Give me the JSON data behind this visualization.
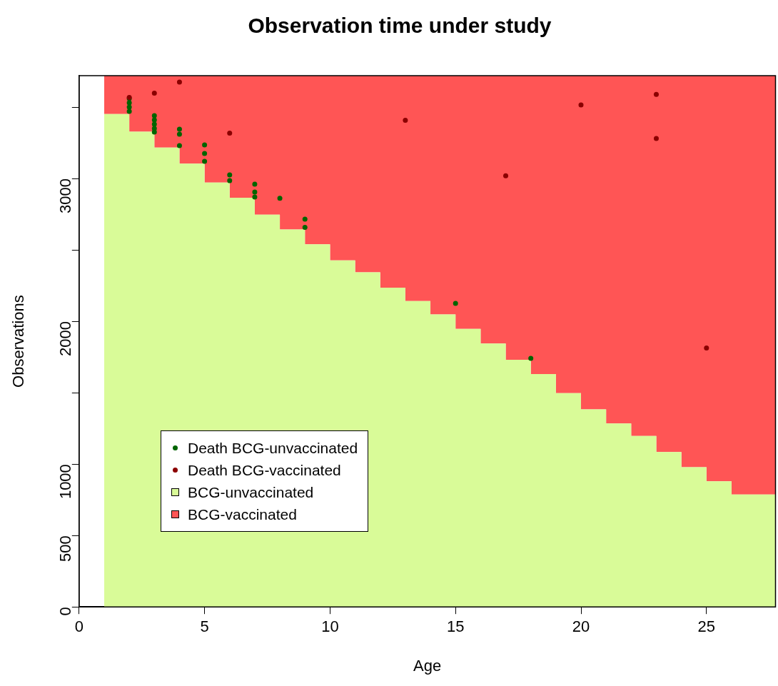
{
  "chart_data": {
    "type": "step",
    "title": "Observation time under study",
    "xlabel": "Age",
    "ylabel": "Observations",
    "xlim": [
      0,
      27.75
    ],
    "xticks": [
      0,
      5,
      10,
      15,
      20,
      25
    ],
    "ylim": [
      0,
      3720
    ],
    "yticks": [
      0,
      500,
      1000,
      {
        "value": 1500,
        "label": null
      },
      2000,
      {
        "value": 2500,
        "label": null
      },
      3000,
      {
        "value": 3500,
        "label": null
      }
    ],
    "grid": false,
    "legend": "bottom left",
    "stacked": true,
    "x": [
      1,
      2,
      3,
      4,
      5,
      6,
      7,
      8,
      9,
      10,
      11,
      12,
      13,
      14,
      15,
      16,
      17,
      18,
      19,
      20,
      21,
      22,
      23,
      24,
      25,
      26,
      27,
      27.75
    ],
    "series": [
      {
        "name": "BCG-unvaccinated",
        "type": "area",
        "color": "#d9fb98",
        "values": [
          3568,
          3451,
          3328,
          3217,
          3104,
          2972,
          2865,
          2747,
          2643,
          2539,
          2427,
          2343,
          2235,
          2142,
          2048,
          1947,
          1844,
          1730,
          1630,
          1497,
          1383,
          1284,
          1197,
          1085,
          978,
          880,
          787,
          787
        ]
      },
      {
        "name": "BCG-vaccinated",
        "type": "area",
        "color": "#ff5555",
        "values": [
          152,
          269,
          392,
          503,
          616,
          748,
          855,
          973,
          1077,
          1181,
          1293,
          1377,
          1485,
          1578,
          1672,
          1773,
          1876,
          1990,
          2090,
          2223,
          2337,
          2436,
          2523,
          2635,
          2742,
          2840,
          2933,
          2933
        ]
      },
      {
        "name": "Death BCG-unvaccinated",
        "type": "scatter",
        "color": "#006400",
        "marker": "circle",
        "x": [
          2,
          2,
          2,
          2,
          3,
          3,
          3,
          3,
          3,
          4,
          4,
          4,
          5,
          5,
          5,
          6,
          6,
          7,
          7,
          7,
          8,
          9,
          9,
          15,
          18
        ],
        "values": [
          3560,
          3530,
          3500,
          3470,
          3440,
          3410,
          3380,
          3350,
          3325,
          3345,
          3310,
          3230,
          3235,
          3175,
          3120,
          3025,
          2985,
          2960,
          2905,
          2870,
          2862,
          2715,
          2658,
          2125,
          1740
        ]
      },
      {
        "name": "Death BCG-vaccinated",
        "type": "scatter",
        "color": "#8b0000",
        "marker": "circle",
        "x": [
          2,
          3,
          4,
          6,
          13,
          17,
          20,
          23,
          23,
          25
        ],
        "values": [
          3568,
          3598,
          3675,
          3317,
          3408,
          3019,
          3515,
          3589,
          3280,
          1813
        ]
      }
    ]
  }
}
